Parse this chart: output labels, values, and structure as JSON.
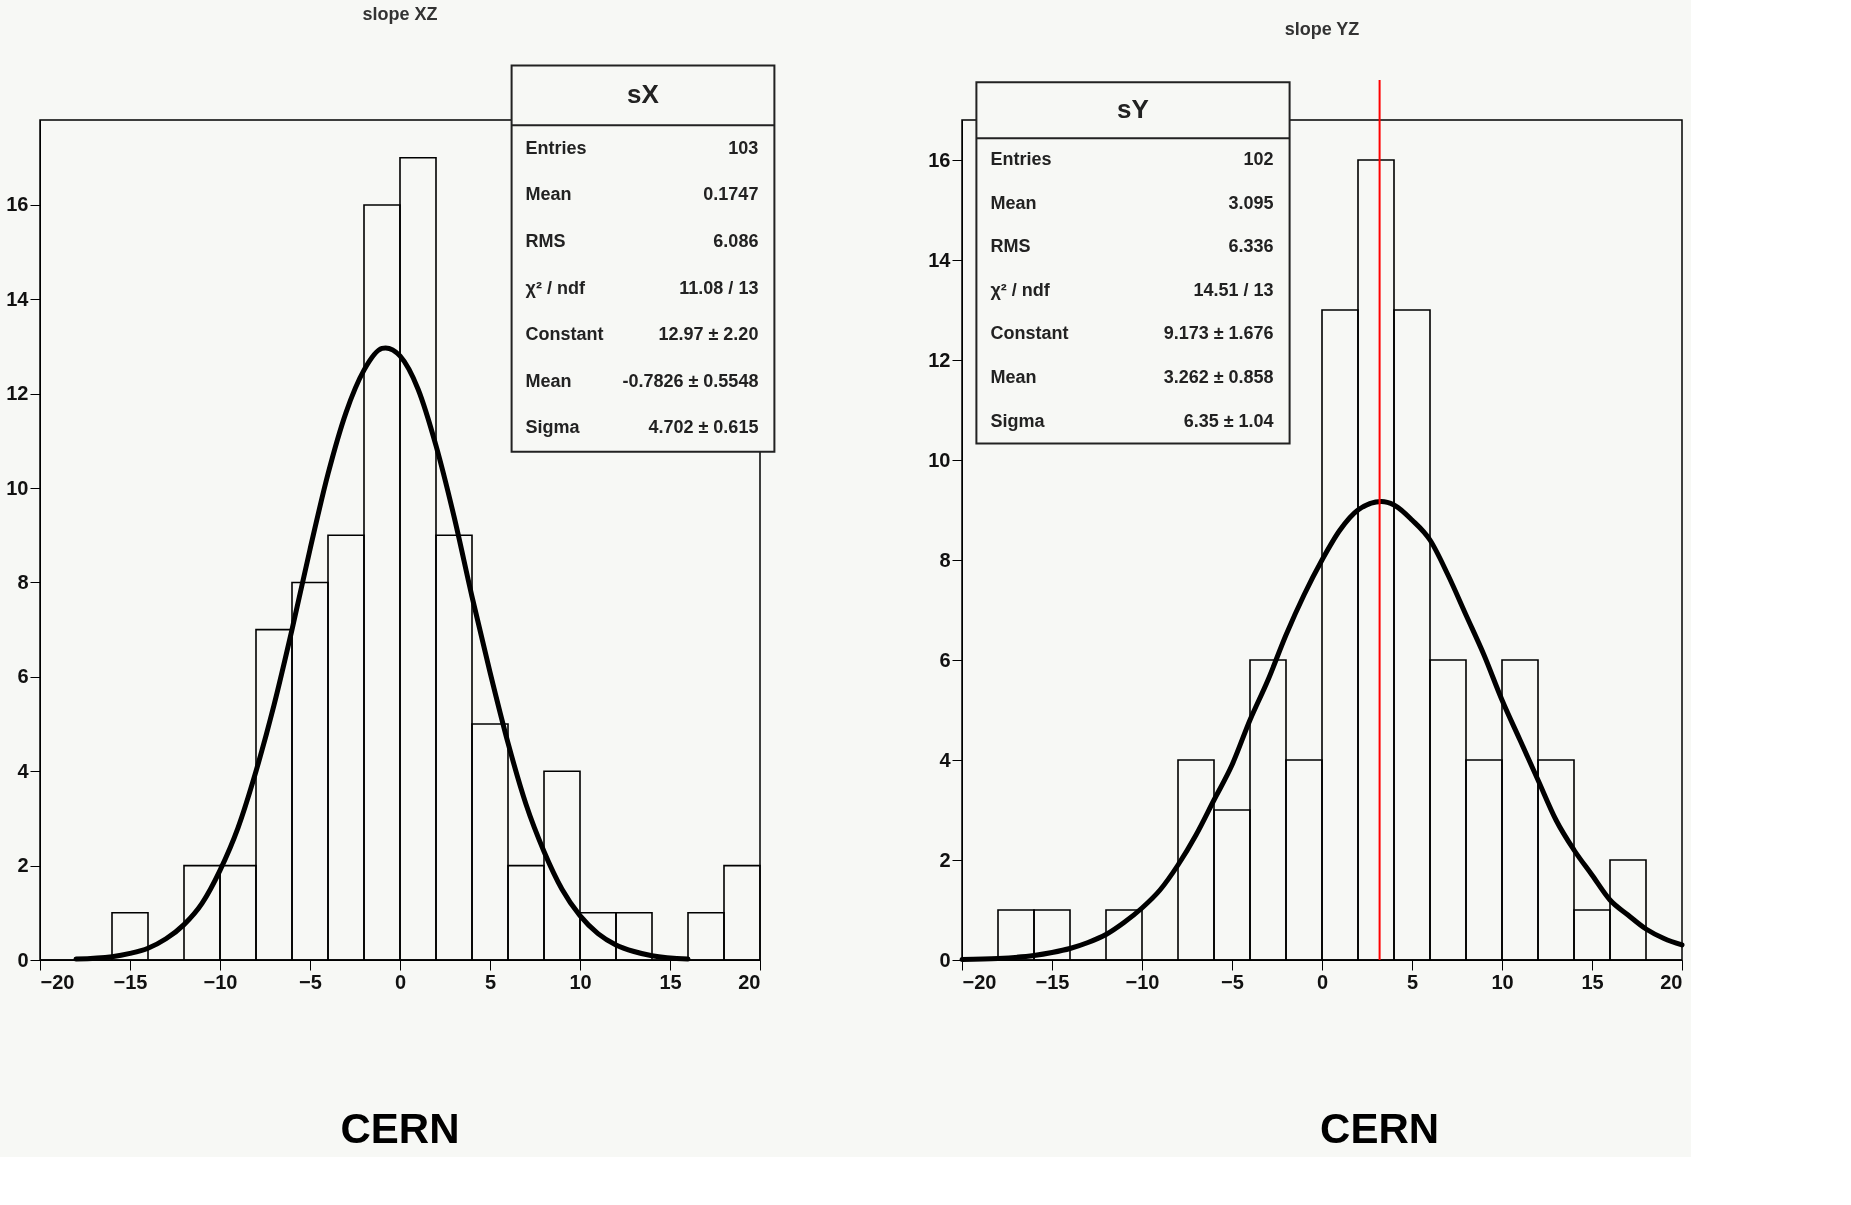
{
  "chart_data": [
    {
      "type": "histogram",
      "title": "slope XZ",
      "color": "#000000",
      "bins": [
        -20,
        -18,
        -16,
        -14,
        -12,
        -10,
        -8,
        -6,
        -4,
        -2,
        0,
        2,
        4,
        6,
        8,
        10,
        12,
        14,
        16,
        18,
        20
      ],
      "values": [
        0,
        0,
        1,
        0,
        2,
        2,
        7,
        8,
        9,
        16,
        17,
        9,
        5,
        2,
        4,
        1,
        1,
        0,
        1,
        2
      ],
      "series": [
        {
          "type": "line",
          "color": "#000000",
          "x": [
            -18,
            -16,
            -15,
            -14,
            -13,
            -12,
            -11,
            -10,
            -9,
            -8,
            -7,
            -6,
            -5,
            -4,
            -3,
            -2,
            -1,
            -0.8,
            0,
            1,
            2,
            3,
            4,
            5,
            6,
            7,
            8,
            9,
            10,
            11,
            12,
            13,
            14,
            16
          ],
          "values": [
            0.02,
            0.07,
            0.14,
            0.25,
            0.45,
            0.75,
            1.2,
            1.9,
            2.8,
            4.0,
            5.4,
            7.0,
            8.7,
            10.3,
            11.6,
            12.5,
            12.96,
            12.97,
            12.8,
            12.1,
            10.9,
            9.4,
            7.7,
            6.1,
            4.6,
            3.3,
            2.3,
            1.5,
            0.94,
            0.56,
            0.32,
            0.18,
            0.09,
            0.02
          ]
        }
      ],
      "xlim": [
        -20,
        20
      ],
      "xticks": [
        -20,
        -15,
        -10,
        -5,
        0,
        5,
        10,
        15,
        20
      ],
      "ylim": [
        0,
        17.8
      ],
      "yticks": [
        0,
        2,
        4,
        6,
        8,
        10,
        12,
        14,
        16
      ],
      "grid": false,
      "marker": "none",
      "line_style": "solid",
      "annotations": [
        "sX",
        "Entries",
        "103",
        "Mean",
        "0.1747",
        "RMS",
        "6.086",
        "χ² / ndf",
        "11.08 / 13",
        "Constant",
        "12.97 ± 2.20",
        "Mean",
        "-0.7826 ± 0.5548",
        "Sigma",
        "4.702 ± 0.615",
        "CERN"
      ]
    },
    {
      "type": "histogram",
      "title": "slope YZ",
      "color": "#000000",
      "bins": [
        -20,
        -18,
        -16,
        -14,
        -12,
        -10,
        -8,
        -6,
        -4,
        -2,
        0,
        2,
        4,
        6,
        8,
        10,
        12,
        14,
        16,
        18,
        20
      ],
      "values": [
        0,
        1,
        1,
        0,
        1,
        0,
        4,
        3,
        6,
        4,
        13,
        16,
        13,
        6,
        4,
        6,
        4,
        1,
        2,
        0
      ],
      "series": [
        {
          "type": "line",
          "color": "#000000",
          "x": [
            -20,
            -18,
            -16,
            -15,
            -14,
            -13,
            -12,
            -11,
            -10,
            -9,
            -8,
            -7,
            -6,
            -5,
            -4,
            -3,
            -2,
            -1,
            0,
            1,
            2,
            3.3,
            4,
            5,
            6,
            7,
            8,
            9,
            10,
            11,
            12,
            13,
            14,
            15,
            16,
            17,
            18,
            19,
            20
          ],
          "values": [
            0.01,
            0.03,
            0.09,
            0.15,
            0.23,
            0.35,
            0.51,
            0.75,
            1.04,
            1.4,
            1.9,
            2.5,
            3.2,
            3.9,
            4.8,
            5.6,
            6.5,
            7.3,
            8.0,
            8.6,
            9.0,
            9.17,
            9.1,
            8.8,
            8.4,
            7.7,
            6.9,
            6.1,
            5.2,
            4.4,
            3.6,
            2.8,
            2.2,
            1.7,
            1.2,
            0.9,
            0.62,
            0.43,
            0.3
          ]
        }
      ],
      "xlim": [
        -20,
        20
      ],
      "xticks": [
        -20,
        -15,
        -10,
        -5,
        0,
        5,
        10,
        15,
        20
      ],
      "ylim": [
        0,
        16.8
      ],
      "yticks": [
        0,
        2,
        4,
        6,
        8,
        10,
        12,
        14,
        16
      ],
      "grid": false,
      "marker": "none",
      "line_style": "solid",
      "ref_lines": [
        {
          "axis": "x",
          "value": 3.2,
          "color": "#ff0000"
        }
      ],
      "annotations": [
        "sY",
        "Entries",
        "102",
        "Mean",
        "3.095",
        "RMS",
        "6.336",
        "χ² / ndf",
        "14.51 / 13",
        "Constant",
        "9.173 ± 1.676",
        "Mean",
        "3.262 ± 0.858",
        "Sigma",
        "6.35 ± 1.04",
        "CERN"
      ]
    }
  ]
}
